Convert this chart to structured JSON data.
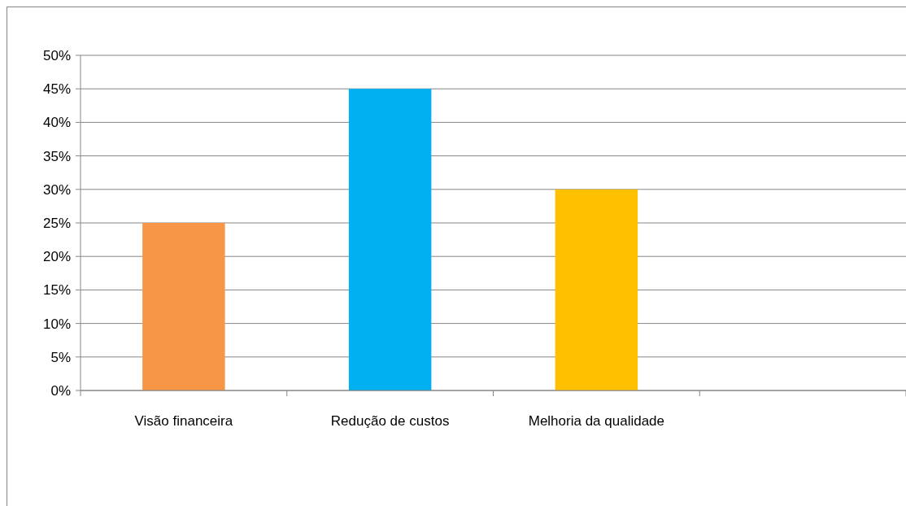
{
  "chart_data": {
    "type": "bar",
    "categories": [
      "Visão financeira",
      "Redução de custos",
      "Melhoria da qualidade",
      null
    ],
    "values": [
      25,
      45,
      30,
      null
    ],
    "colors": [
      "#f79646",
      "#00b0f0",
      "#ffc000",
      null
    ],
    "ylim": [
      0,
      50
    ],
    "yticks": [
      {
        "value": 0,
        "label": "0%"
      },
      {
        "value": 5,
        "label": "5%"
      },
      {
        "value": 10,
        "label": "10%"
      },
      {
        "value": 15,
        "label": "15%"
      },
      {
        "value": 20,
        "label": "20%"
      },
      {
        "value": 25,
        "label": "25%"
      },
      {
        "value": 30,
        "label": "30%"
      },
      {
        "value": 35,
        "label": "35%"
      },
      {
        "value": 40,
        "label": "40%"
      },
      {
        "value": 45,
        "label": "45%"
      },
      {
        "value": 50,
        "label": "50%"
      }
    ],
    "grid": "y"
  }
}
